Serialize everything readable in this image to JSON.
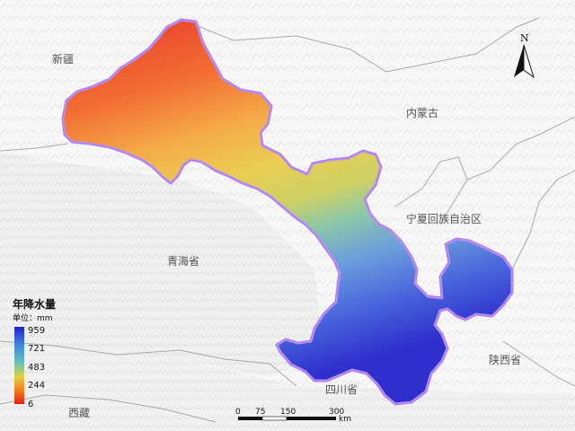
{
  "legend": {
    "title": "年降水量",
    "unit": "单位：mm",
    "ticks": [
      "959",
      "721",
      "483",
      "244",
      "6"
    ],
    "colors": [
      "#2020d0",
      "#4080e0",
      "#60c0c0",
      "#e0d040",
      "#f08020",
      "#e02010"
    ]
  },
  "regions": {
    "xinjiang": "新疆",
    "neimenggu": "内蒙古",
    "qinghai": "青海省",
    "ningxia": "宁夏回族自治区",
    "shaanxi": "陕西省",
    "sichuan": "四川省",
    "xizang": "西藏"
  },
  "scale_bar": {
    "labels": [
      "0",
      "75",
      "150",
      "300"
    ],
    "unit": "km"
  },
  "north_arrow": {
    "label": "N"
  },
  "colors": {
    "province_outline": "#b080f0",
    "boundary": "#a8a8a8",
    "hillshade": "#f4f4f4"
  }
}
